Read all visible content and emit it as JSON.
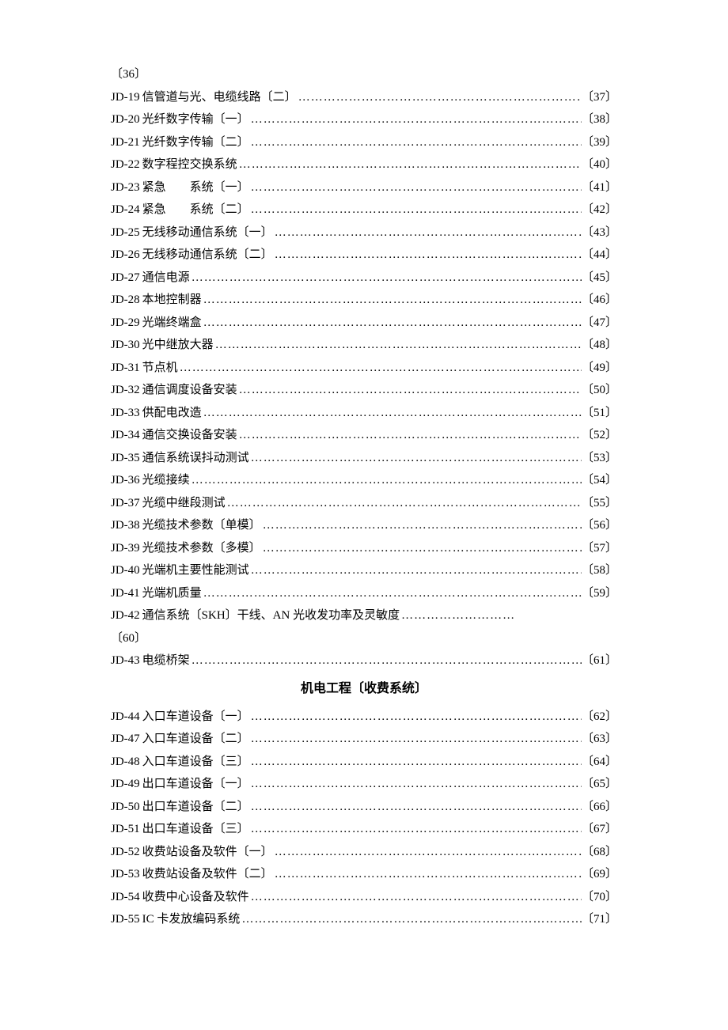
{
  "orphan_top": "〔36〕",
  "section1": [
    {
      "code": "JD-19",
      "title": "信管道与光、电缆线路〔二〕",
      "page": "〔37〕"
    },
    {
      "code": "JD-20",
      "title": "光纤数字传输〔一〕",
      "page": "〔38〕"
    },
    {
      "code": "JD-21",
      "title": "光纤数字传输〔二〕",
      "page": "〔39〕"
    },
    {
      "code": "JD-22",
      "title": "数字程控交换系统",
      "page": "〔40〕"
    },
    {
      "code": "JD-23",
      "title": "紧急　　系统〔一〕",
      "page": "〔41〕"
    },
    {
      "code": "JD-24",
      "title": "紧急　　系统〔二〕",
      "page": "〔42〕"
    },
    {
      "code": "JD-25",
      "title": "无线移动通信系统〔一〕",
      "page": "〔43〕"
    },
    {
      "code": "JD-26",
      "title": "无线移动通信系统〔二〕",
      "page": "〔44〕"
    },
    {
      "code": "JD-27",
      "title": "通信电源",
      "page": "〔45〕"
    },
    {
      "code": "JD-28",
      "title": "本地控制器",
      "page": "〔46〕"
    },
    {
      "code": "JD-29",
      "title": "光端终端盒",
      "page": "〔47〕"
    },
    {
      "code": "JD-30",
      "title": "光中继放大器",
      "page": "〔48〕"
    },
    {
      "code": "JD-31",
      "title": "节点机",
      "page": "〔49〕"
    },
    {
      "code": "JD-32",
      "title": "通信调度设备安装",
      "page": "〔50〕"
    },
    {
      "code": "JD-33",
      "title": "供配电改造",
      "page": "〔51〕"
    },
    {
      "code": "JD-34",
      "title": "通信交换设备安装",
      "page": "〔52〕"
    },
    {
      "code": "JD-35",
      "title": "通信系统误抖动测试",
      "page": "〔53〕"
    },
    {
      "code": "JD-36",
      "title": "光缆接续",
      "page": "〔54〕"
    },
    {
      "code": "JD-37",
      "title": "光缆中继段测试",
      "page": "〔55〕"
    },
    {
      "code": "JD-38",
      "title": "光缆技术参数〔单模〕",
      "page": "〔56〕"
    },
    {
      "code": "JD-39",
      "title": "光缆技术参数〔多模〕",
      "page": "〔57〕"
    },
    {
      "code": "JD-40",
      "title": "光端机主要性能测试",
      "page": "〔58〕"
    },
    {
      "code": "JD-41",
      "title": "光端机质量",
      "page": "〔59〕"
    }
  ],
  "wrapped_entry": {
    "code": "JD-42",
    "title": "通信系统〔SKH〕干线、AN 光收发功率及灵敏度",
    "page": "〔60〕"
  },
  "section1_tail": [
    {
      "code": "JD-43",
      "title": "电缆桥架",
      "page": "〔61〕"
    }
  ],
  "section2_header": "机电工程〔收费系统〕",
  "section2": [
    {
      "code": "JD-44",
      "title": "入口车道设备〔一〕",
      "page": "〔62〕"
    },
    {
      "code": "JD-47",
      "title": "入口车道设备〔二〕",
      "page": "〔63〕"
    },
    {
      "code": "JD-48",
      "title": "入口车道设备〔三〕",
      "page": "〔64〕"
    },
    {
      "code": "JD-49",
      "title": "出口车道设备〔一〕",
      "page": "〔65〕"
    },
    {
      "code": "JD-50",
      "title": "出口车道设备〔二〕",
      "page": "〔66〕"
    },
    {
      "code": "JD-51",
      "title": "出口车道设备〔三〕",
      "page": "〔67〕"
    },
    {
      "code": "JD-52",
      "title": "收费站设备及软件〔一〕",
      "page": "〔68〕"
    },
    {
      "code": "JD-53",
      "title": "收费站设备及软件〔二〕",
      "page": "〔69〕"
    },
    {
      "code": "JD-54",
      "title": "收费中心设备及软件",
      "page": "〔70〕"
    },
    {
      "code": "JD-55",
      "title": "IC 卡发放编码系统",
      "page": "〔71〕"
    }
  ],
  "dotfill": "…"
}
